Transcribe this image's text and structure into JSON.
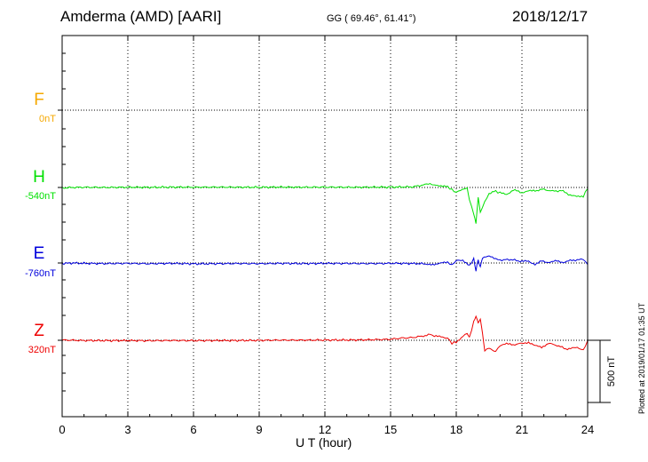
{
  "header": {
    "station": "Amderma (AMD)  [AARI]",
    "coords": "GG ( 69.46°,  61.41°)",
    "date": "2018/12/17"
  },
  "footer": {
    "plotted": "Plotted at 2019/01/17 01:35 UT"
  },
  "chart_data": {
    "type": "line",
    "title": "Amderma (AMD)  [AARI]",
    "xlabel": "U T (hour)",
    "ylabel": "",
    "xlim": [
      0,
      24
    ],
    "xticks": [
      0,
      3,
      6,
      9,
      12,
      15,
      18,
      21,
      24
    ],
    "grid": true,
    "scale_bar_label": "500 nT",
    "scale_bar_nT": 500,
    "traces": [
      {
        "component": "F",
        "baseline_label": "0nT",
        "baseline_nT": 0,
        "color": "#f5a800",
        "offset_nT": 0,
        "points": []
      },
      {
        "component": "H",
        "baseline_label": "-540nT",
        "baseline_nT": -540,
        "color": "#00e000",
        "offset_nT": 0,
        "points": [
          [
            0,
            -4
          ],
          [
            0.5,
            0
          ],
          [
            1,
            2
          ],
          [
            2,
            0
          ],
          [
            3,
            2
          ],
          [
            4,
            1
          ],
          [
            5,
            3
          ],
          [
            6,
            2
          ],
          [
            7,
            3
          ],
          [
            8,
            2
          ],
          [
            9,
            2
          ],
          [
            10,
            3
          ],
          [
            11,
            2
          ],
          [
            12,
            3
          ],
          [
            13,
            2
          ],
          [
            14,
            2
          ],
          [
            15,
            3
          ],
          [
            16,
            5
          ],
          [
            16.5,
            20
          ],
          [
            16.8,
            28
          ],
          [
            17,
            20
          ],
          [
            17.3,
            16
          ],
          [
            17.6,
            5
          ],
          [
            17.8,
            -18
          ],
          [
            18,
            -40
          ],
          [
            18.2,
            -20
          ],
          [
            18.5,
            -10
          ],
          [
            18.6,
            -95
          ],
          [
            18.8,
            -215
          ],
          [
            18.9,
            -290
          ],
          [
            19,
            -80
          ],
          [
            19.1,
            -200
          ],
          [
            19.3,
            -115
          ],
          [
            19.5,
            -50
          ],
          [
            19.8,
            -30
          ],
          [
            20,
            -45
          ],
          [
            20.3,
            -55
          ],
          [
            20.6,
            -20
          ],
          [
            21,
            -40
          ],
          [
            21.3,
            -30
          ],
          [
            21.6,
            -25
          ],
          [
            22,
            -15
          ],
          [
            22.4,
            -30
          ],
          [
            22.8,
            -25
          ],
          [
            23.2,
            -60
          ],
          [
            23.5,
            -75
          ],
          [
            23.8,
            -70
          ],
          [
            24,
            -10
          ]
        ]
      },
      {
        "component": "E",
        "baseline_label": "-760nT",
        "baseline_nT": -760,
        "color": "#0000dd",
        "offset_nT": 0,
        "points": [
          [
            0,
            -4
          ],
          [
            0.5,
            0
          ],
          [
            1,
            -3
          ],
          [
            2,
            -5
          ],
          [
            3,
            -3
          ],
          [
            4,
            -6
          ],
          [
            5,
            -3
          ],
          [
            6,
            -7
          ],
          [
            7,
            -6
          ],
          [
            8,
            -4
          ],
          [
            9,
            -6
          ],
          [
            10,
            -3
          ],
          [
            11,
            -5
          ],
          [
            12,
            -3
          ],
          [
            13,
            -4
          ],
          [
            14,
            -5
          ],
          [
            15,
            -3
          ],
          [
            16,
            -4
          ],
          [
            16.5,
            -6
          ],
          [
            16.7,
            -14
          ],
          [
            17,
            -8
          ],
          [
            17.3,
            -2
          ],
          [
            17.6,
            5
          ],
          [
            17.8,
            -16
          ],
          [
            18,
            18
          ],
          [
            18.3,
            25
          ],
          [
            18.6,
            -22
          ],
          [
            18.8,
            35
          ],
          [
            18.9,
            -65
          ],
          [
            19,
            28
          ],
          [
            19.1,
            -35
          ],
          [
            19.2,
            45
          ],
          [
            19.5,
            52
          ],
          [
            19.8,
            35
          ],
          [
            20,
            24
          ],
          [
            20.5,
            28
          ],
          [
            21,
            12
          ],
          [
            21.3,
            14
          ],
          [
            21.6,
            -10
          ],
          [
            21.9,
            14
          ],
          [
            22.3,
            4
          ],
          [
            22.6,
            18
          ],
          [
            22.9,
            6
          ],
          [
            23.2,
            18
          ],
          [
            23.6,
            28
          ],
          [
            23.8,
            30
          ],
          [
            24,
            -12
          ]
        ]
      },
      {
        "component": "Z",
        "baseline_label": "320nT",
        "baseline_nT": 320,
        "color": "#ee0000",
        "offset_nT": 0,
        "points": [
          [
            0,
            2
          ],
          [
            0.5,
            0
          ],
          [
            1,
            -2
          ],
          [
            2,
            -3
          ],
          [
            3,
            -2
          ],
          [
            4,
            -4
          ],
          [
            5,
            -2
          ],
          [
            6,
            -3
          ],
          [
            7,
            -2
          ],
          [
            8,
            -2
          ],
          [
            9,
            -1
          ],
          [
            10,
            1
          ],
          [
            11,
            1
          ],
          [
            12,
            2
          ],
          [
            13,
            2
          ],
          [
            14,
            4
          ],
          [
            15,
            8
          ],
          [
            15.5,
            18
          ],
          [
            16,
            22
          ],
          [
            16.5,
            35
          ],
          [
            16.8,
            48
          ],
          [
            17,
            32
          ],
          [
            17.3,
            28
          ],
          [
            17.6,
            20
          ],
          [
            17.8,
            -25
          ],
          [
            18,
            -12
          ],
          [
            18.3,
            30
          ],
          [
            18.5,
            60
          ],
          [
            18.6,
            20
          ],
          [
            18.8,
            150
          ],
          [
            18.9,
            195
          ],
          [
            19,
            140
          ],
          [
            19.1,
            170
          ],
          [
            19.2,
            55
          ],
          [
            19.3,
            -85
          ],
          [
            19.5,
            -60
          ],
          [
            19.8,
            -90
          ],
          [
            20,
            -40
          ],
          [
            20.3,
            -30
          ],
          [
            20.6,
            -35
          ],
          [
            21,
            -25
          ],
          [
            21.3,
            -15
          ],
          [
            21.6,
            -45
          ],
          [
            21.9,
            -55
          ],
          [
            22.2,
            -25
          ],
          [
            22.6,
            -40
          ],
          [
            23,
            -70
          ],
          [
            23.3,
            -60
          ],
          [
            23.6,
            -65
          ],
          [
            23.8,
            -80
          ],
          [
            24,
            -2
          ]
        ]
      }
    ]
  }
}
